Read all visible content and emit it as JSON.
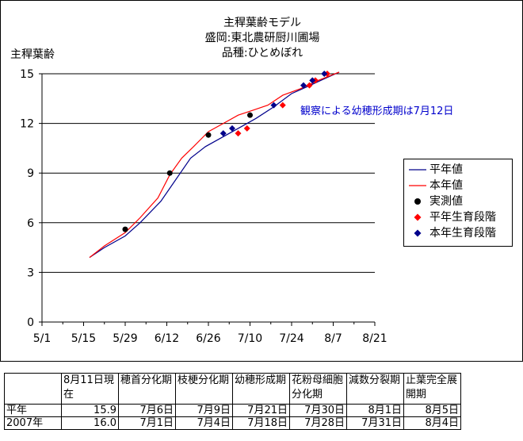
{
  "title_lines": [
    "主稈葉齢モデル",
    "盛岡:東北農研厨川圃場",
    "品種:ひとめぼれ"
  ],
  "ylabel": "主稈葉齢",
  "annotation": "観察による幼穂形成期は7月12日",
  "legend": [
    "平年値",
    "本年値",
    "実測値",
    "平年生育段階",
    "本年生育段階"
  ],
  "colors": {
    "normal": "#00008b",
    "current": "#ff0000",
    "measured": "#000000",
    "stage_normal": "#ff0000",
    "stage_current": "#00008b"
  },
  "chart_data": {
    "type": "line",
    "xlabel": "",
    "ylabel": "主稈葉齢",
    "x_ticks": [
      "5/1",
      "5/15",
      "5/29",
      "6/12",
      "6/26",
      "7/10",
      "7/24",
      "8/7",
      "8/21"
    ],
    "xlim": [
      "5/1",
      "8/21"
    ],
    "ylim": [
      0,
      15
    ],
    "y_ticks": [
      0,
      3,
      6,
      9,
      12,
      15
    ],
    "grid": "horizontal",
    "legend_position": "right",
    "series": [
      {
        "name": "平年値",
        "x": [
          "5/17",
          "5/22",
          "5/29",
          "6/3",
          "6/10",
          "6/15",
          "6/20",
          "6/25",
          "7/1",
          "7/7",
          "7/12",
          "7/18",
          "7/24",
          "7/29",
          "8/4",
          "8/9"
        ],
        "y": [
          3.9,
          4.5,
          5.2,
          6.0,
          7.3,
          8.6,
          9.9,
          10.6,
          11.2,
          11.8,
          12.3,
          13.0,
          13.8,
          14.2,
          14.7,
          15.1
        ]
      },
      {
        "name": "本年値",
        "x": [
          "5/17",
          "5/22",
          "5/29",
          "6/3",
          "6/9",
          "6/13",
          "6/17",
          "6/21",
          "6/26",
          "7/1",
          "7/6",
          "7/11",
          "7/16",
          "7/21",
          "7/27",
          "8/2",
          "8/9"
        ],
        "y": [
          3.9,
          4.6,
          5.4,
          6.3,
          7.5,
          8.9,
          9.9,
          10.6,
          11.5,
          12.0,
          12.5,
          12.8,
          13.1,
          13.7,
          14.1,
          14.6,
          15.1
        ]
      },
      {
        "name": "実測値",
        "x": [
          "5/29",
          "6/13",
          "6/26",
          "7/10"
        ],
        "y": [
          5.6,
          9.0,
          11.3,
          12.5
        ]
      },
      {
        "name": "平年生育段階",
        "x": [
          "7/6",
          "7/9",
          "7/21",
          "7/30",
          "8/1",
          "8/5"
        ],
        "y": [
          11.4,
          11.7,
          13.1,
          14.3,
          14.6,
          15.0
        ]
      },
      {
        "name": "本年生育段階",
        "x": [
          "7/1",
          "7/4",
          "7/18",
          "7/28",
          "7/31",
          "8/4"
        ],
        "y": [
          11.4,
          11.7,
          13.1,
          14.3,
          14.6,
          15.0
        ]
      }
    ]
  },
  "table": {
    "header": [
      "",
      "8月11日現在",
      "穂首分化期",
      "枝梗分化期",
      "幼穂形成期",
      "花粉母細胞分化期",
      "減数分裂期",
      "止葉完全展開期"
    ],
    "rows": [
      [
        "平年",
        "15.9",
        "7月6日",
        "7月9日",
        "7月21日",
        "7月30日",
        "8月1日",
        "8月5日"
      ],
      [
        "2007年",
        "16.0",
        "7月1日",
        "7月4日",
        "7月18日",
        "7月28日",
        "7月31日",
        "8月4日"
      ]
    ]
  }
}
